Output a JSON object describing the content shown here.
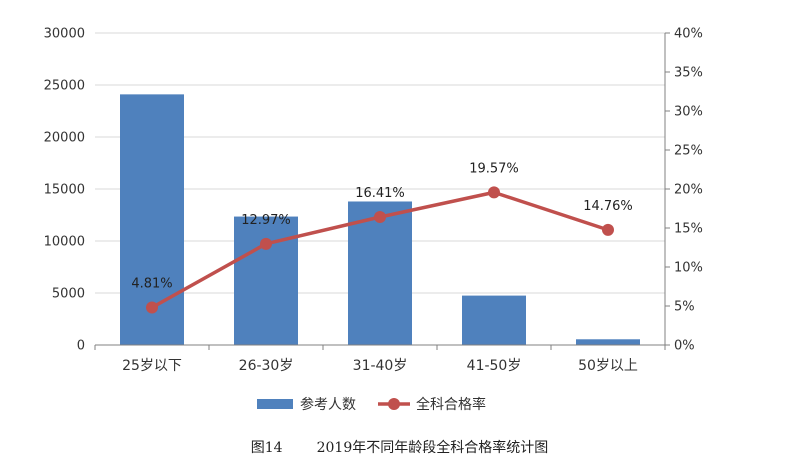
{
  "caption": {
    "figure_number": "图14",
    "title": "2019年不同年龄段全科合格率统计图"
  },
  "chart_data": {
    "type": "bar",
    "categories": [
      "25岁以下",
      "26-30岁",
      "31-40岁",
      "41-50岁",
      "50岁以上"
    ],
    "series": [
      {
        "name": "参考人数",
        "type": "bar",
        "axis": "left",
        "color": "#4F81BD",
        "values": [
          24100,
          12350,
          13800,
          4750,
          550
        ]
      },
      {
        "name": "全科合格率",
        "type": "line",
        "axis": "right",
        "color": "#C0504D",
        "values": [
          4.81,
          12.97,
          16.41,
          19.57,
          14.76
        ],
        "labels": [
          "4.81%",
          "12.97%",
          "16.41%",
          "19.57%",
          "14.76%"
        ]
      }
    ],
    "y_left": {
      "ylim": [
        0,
        30000
      ],
      "ticks": [
        "0",
        "5000",
        "10000",
        "15000",
        "20000",
        "25000",
        "30000"
      ]
    },
    "y_right": {
      "ylim": [
        0,
        40
      ],
      "ticks": [
        "0%",
        "5%",
        "10%",
        "15%",
        "20%",
        "25%",
        "30%",
        "35%",
        "40%"
      ]
    },
    "grid": true,
    "legend_position": "bottom"
  }
}
